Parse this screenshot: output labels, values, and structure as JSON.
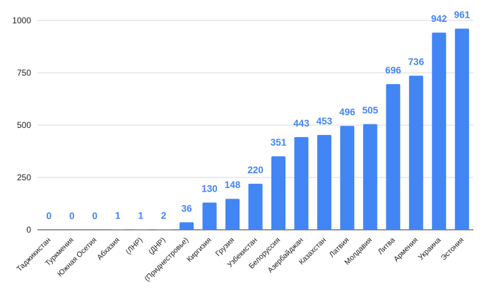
{
  "colors": {
    "bar": "#4285F4",
    "data_label": "#4285F4",
    "grid": "#d9d9d9",
    "axis": "#333333"
  },
  "chart_data": {
    "type": "bar",
    "title": "",
    "xlabel": "",
    "ylabel": "",
    "ylim": [
      0,
      1000
    ],
    "yticks": [
      0,
      250,
      500,
      750,
      1000
    ],
    "grid": true,
    "legend": "none",
    "data_labels": true,
    "categories": [
      "Таджикистан",
      "Туркмения",
      "Южная Осетия",
      "Абхазия",
      "(ЛНР)",
      "(ДНР)",
      "(Приднестровье)",
      "Киргизия",
      "Грузия",
      "Узбекистан",
      "Белоруссия",
      "Азербайджан",
      "Казахстан",
      "Латвия",
      "Молдавия",
      "Литва",
      "Армения",
      "Украина",
      "Эстония"
    ],
    "values": [
      0,
      0,
      0,
      1,
      1,
      2,
      36,
      130,
      148,
      220,
      351,
      443,
      453,
      496,
      505,
      696,
      736,
      942,
      961
    ]
  }
}
